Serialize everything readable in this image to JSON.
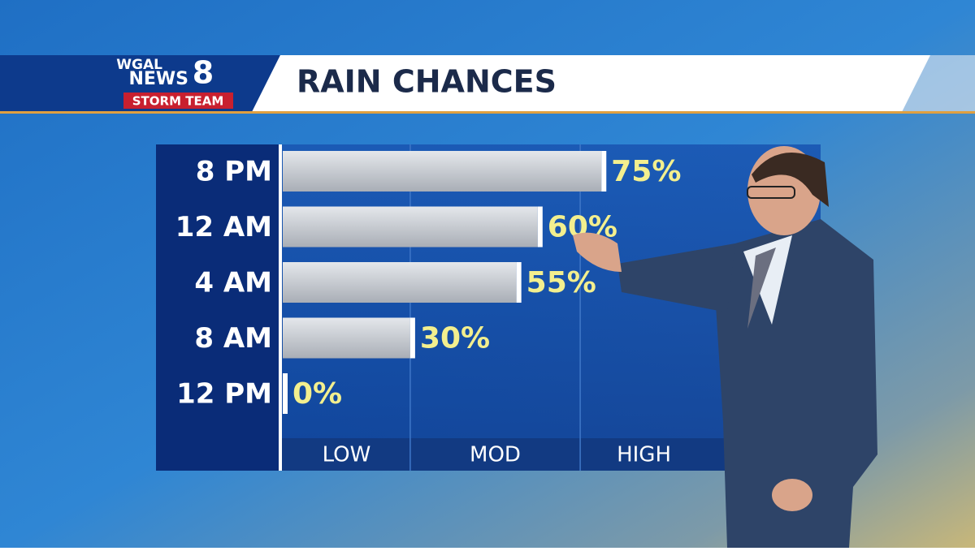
{
  "logo": {
    "line1": "WGAL",
    "line2": "NEWS",
    "number": "8",
    "team": "STORM TEAM"
  },
  "chart_data": {
    "type": "bar",
    "orientation": "horizontal",
    "title": "RAIN CHANCES",
    "categories": [
      "8 PM",
      "12 AM",
      "4 AM",
      "8 AM",
      "12 PM"
    ],
    "values": [
      75,
      60,
      55,
      30,
      0
    ],
    "value_labels": [
      "75%",
      "60%",
      "55%",
      "30%",
      "0%"
    ],
    "xlim": [
      0,
      100
    ],
    "bands": [
      {
        "label": "LOW",
        "from": 0,
        "to": 30
      },
      {
        "label": "MOD",
        "from": 30,
        "to": 70
      },
      {
        "label": "HIGH",
        "from": 70,
        "to": 100
      }
    ],
    "color": "#c9cdd3",
    "label_color": "#f3ef8e"
  }
}
